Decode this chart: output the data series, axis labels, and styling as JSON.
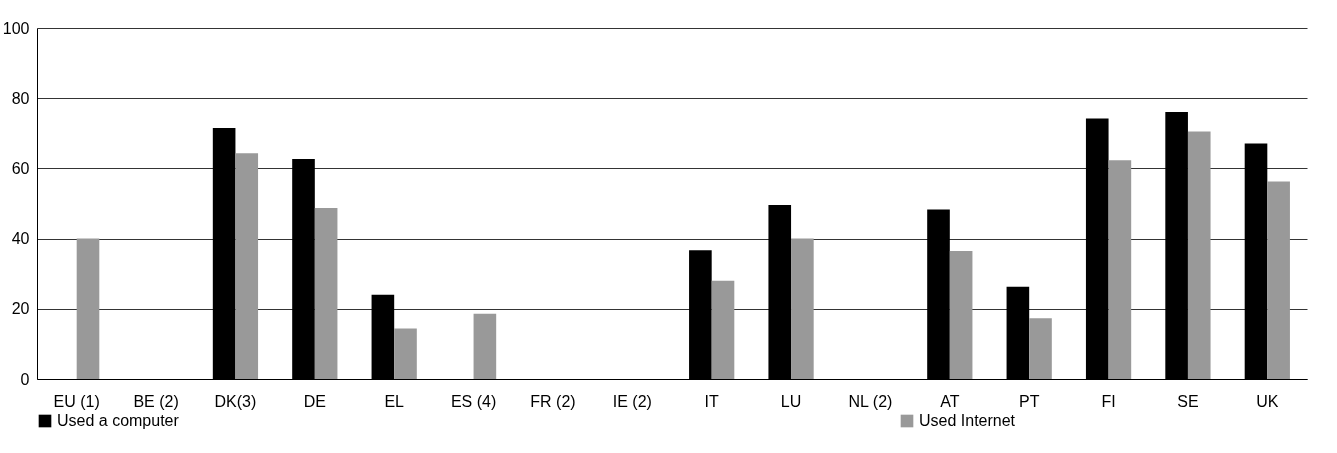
{
  "chart_data": {
    "type": "bar",
    "categories": [
      "EU (1)",
      "BE (2)",
      "DK(3)",
      "DE",
      "EL",
      "ES (4)",
      "FR (2)",
      "IE  (2)",
      "IT",
      "LU",
      "NL (2)",
      "AT",
      "PT",
      "FI",
      "SE",
      "UK"
    ],
    "series": [
      {
        "name": "Used a computer",
        "color": "#000000",
        "values": [
          null,
          null,
          71.5,
          62.7,
          24.0,
          null,
          null,
          null,
          36.7,
          49.6,
          null,
          48.3,
          26.3,
          74.2,
          76.1,
          67.1
        ]
      },
      {
        "name": "Used Internet",
        "color": "#999999",
        "values": [
          40,
          null,
          64.3,
          48.7,
          14.4,
          18.6,
          null,
          null,
          28.0,
          40.0,
          null,
          36.5,
          17.3,
          62.3,
          70.5,
          56.3
        ]
      }
    ],
    "ylim": [
      0,
      100
    ],
    "yticks": [
      0,
      20,
      40,
      60,
      80,
      100
    ],
    "grid": "y",
    "legend": "bottom"
  }
}
